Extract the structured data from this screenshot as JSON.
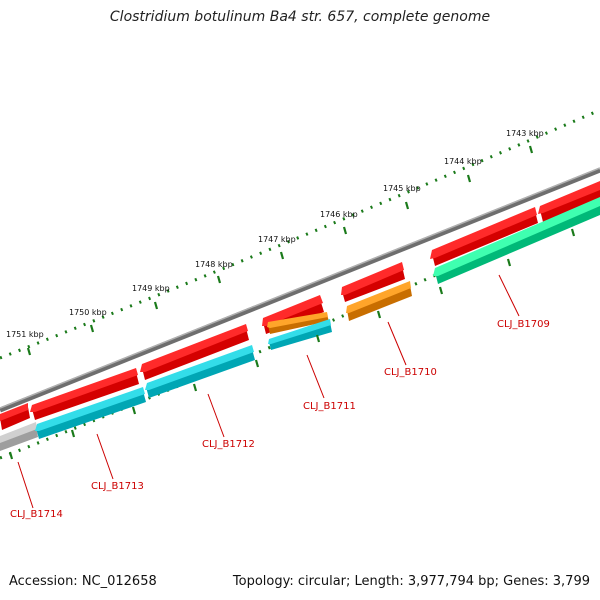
{
  "title": "Clostridium botulinum Ba4 str. 657, complete genome",
  "footer": {
    "accession": "Accession: NC_012658",
    "topology": "Topology: circular; Length: 3,977,794 bp; Genes: 3,799"
  },
  "colors": {
    "backbone": "#8a8a8a",
    "cds": "#ee0000",
    "rna": "#00c8d8",
    "orange": "#f08c00",
    "green": "#10e890",
    "gray": "#bdbdbd",
    "ticks": "#1a7a1a",
    "label": "#cc0000"
  },
  "ruler": {
    "labels": [
      "1751 kbp",
      "1750 kbp",
      "1749 kbp",
      "1748 kbp",
      "1747 kbp",
      "1746 kbp",
      "1745 kbp",
      "1744 kbp",
      "1743 kbp"
    ]
  },
  "genes": [
    {
      "name": "CLJ_B1714"
    },
    {
      "name": "CLJ_B1713"
    },
    {
      "name": "CLJ_B1712"
    },
    {
      "name": "CLJ_B1711"
    },
    {
      "name": "CLJ_B1710"
    },
    {
      "name": "CLJ_B1709"
    }
  ]
}
